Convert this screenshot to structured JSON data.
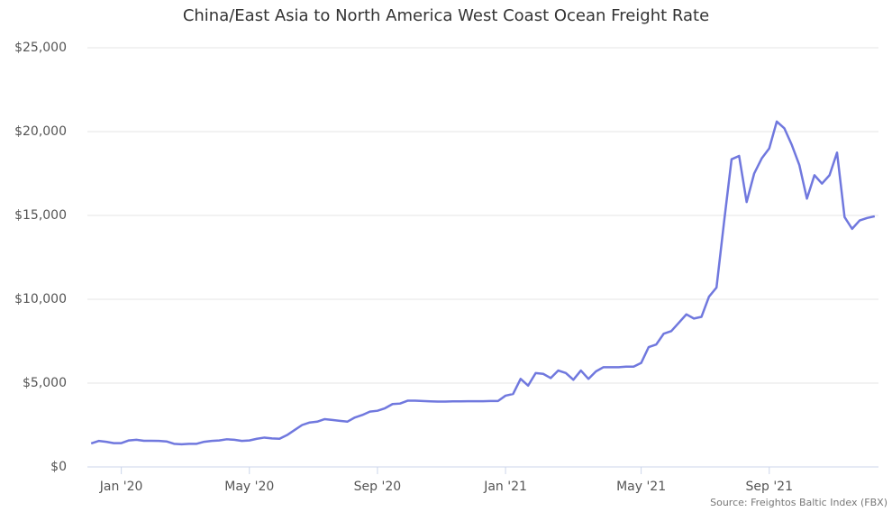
{
  "chart_data": {
    "type": "line",
    "title": "China/East Asia to North America West Coast Ocean Freight Rate",
    "source": "Source: Freightos Baltic Index (FBX)",
    "categories": [
      null,
      null,
      null,
      null,
      "Jan '20",
      null,
      null,
      null,
      null,
      null,
      null,
      null,
      null,
      null,
      null,
      null,
      null,
      null,
      null,
      null,
      null,
      "May '20",
      null,
      null,
      null,
      null,
      null,
      null,
      null,
      null,
      null,
      null,
      null,
      null,
      null,
      null,
      null,
      null,
      "Sep '20",
      null,
      null,
      null,
      null,
      null,
      null,
      null,
      null,
      null,
      null,
      null,
      null,
      null,
      null,
      null,
      null,
      "Jan '21",
      null,
      null,
      null,
      null,
      null,
      null,
      null,
      null,
      null,
      null,
      null,
      null,
      null,
      null,
      null,
      null,
      null,
      "May '21",
      null,
      null,
      null,
      null,
      null,
      null,
      null,
      null,
      null,
      null,
      null,
      null,
      null,
      null,
      null,
      null,
      "Sep '21",
      null,
      null,
      null,
      null,
      null,
      null,
      null,
      null,
      null,
      null,
      null,
      null,
      null,
      null
    ],
    "values": [
      1400,
      1550,
      1500,
      1420,
      1420,
      1580,
      1620,
      1560,
      1560,
      1550,
      1520,
      1380,
      1350,
      1380,
      1380,
      1500,
      1550,
      1580,
      1650,
      1620,
      1550,
      1580,
      1680,
      1750,
      1700,
      1680,
      1900,
      2200,
      2500,
      2650,
      2700,
      2850,
      2800,
      2750,
      2700,
      2950,
      3100,
      3300,
      3350,
      3500,
      3750,
      3780,
      3950,
      3950,
      3930,
      3910,
      3900,
      3900,
      3910,
      3910,
      3920,
      3920,
      3920,
      3930,
      3930,
      4250,
      4350,
      5250,
      4850,
      5600,
      5550,
      5300,
      5750,
      5600,
      5200,
      5750,
      5250,
      5700,
      5950,
      5950,
      5950,
      5980,
      5980,
      6200,
      7150,
      7300,
      7950,
      8100,
      8600,
      9100,
      8850,
      8950,
      10150,
      10700,
      14600,
      18350,
      18550,
      15800,
      17500,
      18400,
      19000,
      20600,
      20200,
      19200,
      18000,
      16000,
      17400,
      16900,
      17400,
      18750,
      14900,
      14200,
      14700,
      14850,
      14950
    ],
    "color": "#7078de",
    "ylim": [
      0,
      25000
    ],
    "yticks": [
      {
        "value": 0,
        "label": "$0"
      },
      {
        "value": 5000,
        "label": "$5,000"
      },
      {
        "value": 10000,
        "label": "$10,000"
      },
      {
        "value": 15000,
        "label": "$15,000"
      },
      {
        "value": 20000,
        "label": "$20,000"
      },
      {
        "value": 25000,
        "label": "$25,000"
      }
    ],
    "grid": true
  }
}
